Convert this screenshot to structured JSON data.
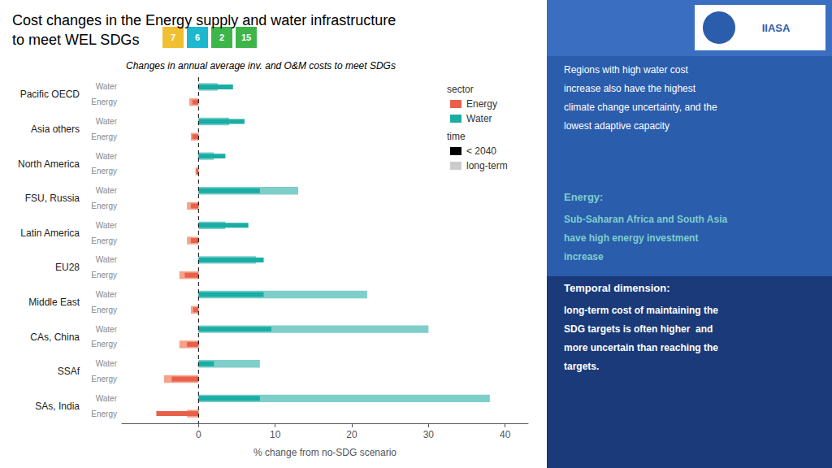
{
  "chart_data": {
    "type": "bar",
    "orientation": "horizontal",
    "title": "Cost changes in the Energy supply and water infrastructure\nto meet WEL SDGs",
    "subtitle": "Changes in annual average inv. and O&M costs to meet SDGs",
    "xlabel": "% change from no-SDG scenario",
    "categories": [
      "Pacific OECD",
      "Asia others",
      "North America",
      "FSU, Russia",
      "Latin America",
      "EU28",
      "Middle East",
      "CAs, China",
      "SSAf",
      "SAs, India"
    ],
    "series": [
      {
        "name": "Water",
        "time": "long-term",
        "color": "#7ECECA",
        "values": [
          2.5,
          4.0,
          2.0,
          13.0,
          3.5,
          7.5,
          22.0,
          30.0,
          8.0,
          38.0
        ]
      },
      {
        "name": "Water",
        "time": "< 2040",
        "color": "#1AADA3",
        "values": [
          4.5,
          6.0,
          3.5,
          8.0,
          6.5,
          8.5,
          8.5,
          9.5,
          2.0,
          8.0
        ]
      },
      {
        "name": "Energy",
        "time": "long-term",
        "color": "#F5A28A",
        "values": [
          -1.2,
          -1.0,
          -0.4,
          -1.5,
          -1.5,
          -2.5,
          -1.0,
          -2.5,
          -4.5,
          -1.5
        ]
      },
      {
        "name": "Energy",
        "time": "< 2040",
        "color": "#E8604A",
        "values": [
          -0.8,
          -0.8,
          -0.3,
          -1.0,
          -1.0,
          -1.8,
          -0.7,
          -1.5,
          -3.5,
          -5.5
        ]
      }
    ],
    "xlim": [
      -10,
      43
    ],
    "xticks": [
      0,
      10,
      20,
      30,
      40
    ],
    "grid": false,
    "legend": "upper right",
    "legend_groups": [
      {
        "title": "sector",
        "entries": [
          {
            "name": "Energy",
            "color": "#E8604A"
          },
          {
            "name": "Water",
            "color": "#1AADA3"
          }
        ]
      },
      {
        "title": "time",
        "entries": [
          {
            "name": "< 2040",
            "color": "#000000"
          },
          {
            "name": "long-term",
            "color": "#CCCCCC"
          }
        ]
      }
    ],
    "reference_lines": [
      {
        "x": 0,
        "line_style": "dashed",
        "color": "#000000"
      }
    ],
    "badges": [
      {
        "label": "7",
        "color": "#F0C030"
      },
      {
        "label": "6",
        "color": "#1EB8CE"
      },
      {
        "label": "2",
        "color": "#3DB54A"
      },
      {
        "label": "15",
        "color": "#3DB54A"
      }
    ],
    "background_color": "#FFFFFF",
    "panel": {
      "background": "#2B5DAD",
      "header_color": "#3A6EC0",
      "logo": "IIASA",
      "sections": [
        {
          "lines": [
            "Regions with high water cost",
            "increase also have the highest",
            "climate change uncertainty, and the",
            "lowest adaptive capacity"
          ],
          "color": "#FFFFFF"
        },
        {
          "heading": "Energy:",
          "lines": [
            "Sub-Saharan Africa and South Asia",
            "have high energy investment",
            "increase"
          ],
          "color": "#7ECECA"
        },
        {
          "heading": "Temporal dimension:",
          "lines": [
            "long-term cost of maintaining the",
            "SDG targets is often higher  and",
            "more uncertain than reaching the",
            "targets."
          ],
          "color": "#FFFFFF",
          "background": "#1a3a7a"
        }
      ]
    }
  }
}
